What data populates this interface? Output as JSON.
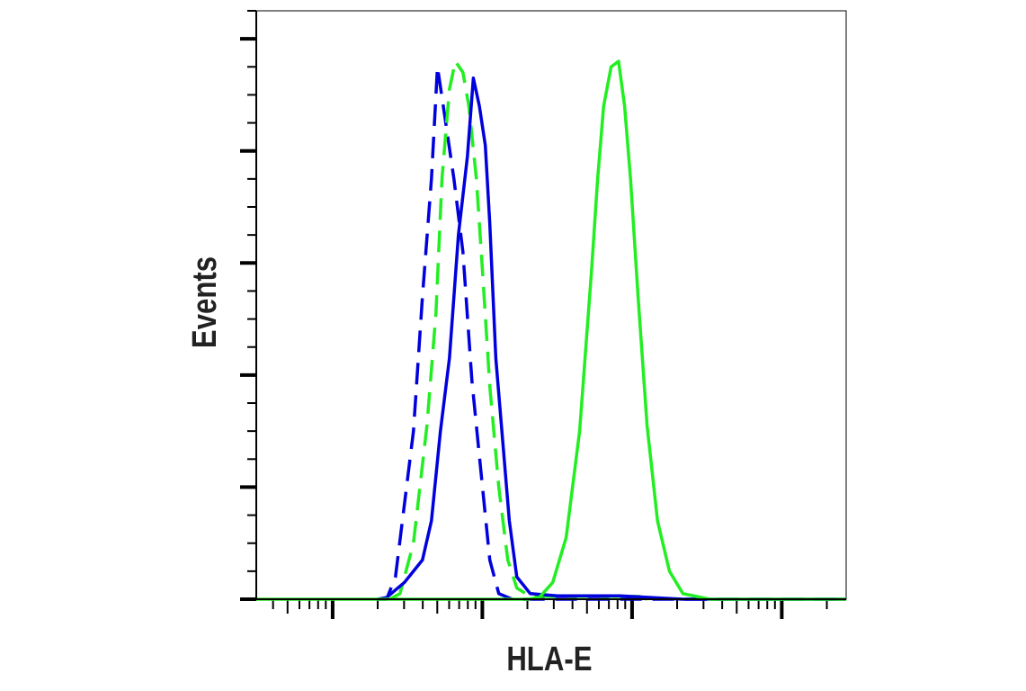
{
  "chart_data": {
    "type": "line",
    "title": "",
    "xlabel": "HLA-E",
    "ylabel": "Events",
    "x_scale": "log",
    "xlim": [
      0.49,
      4.43
    ],
    "ylim": [
      0,
      105
    ],
    "y_ticks_major": [
      0,
      20,
      40,
      60,
      80,
      100
    ],
    "y_minor_step": 5,
    "x_decades": [
      1,
      2,
      3,
      4
    ],
    "grid": false,
    "legend": "none",
    "tick_labels_shown": false,
    "series": [
      {
        "color": "#0000dd",
        "dash": true,
        "x": [
          1.3,
          1.36,
          1.42,
          1.54,
          1.6,
          1.66,
          1.7,
          1.75,
          1.81,
          1.87,
          1.93,
          1.99,
          2.05,
          2.11,
          2.2,
          4.43
        ],
        "y": [
          0,
          0,
          4,
          30,
          54,
          75,
          95,
          86,
          75,
          62,
          39,
          23,
          7,
          1,
          0,
          0
        ]
      },
      {
        "color": "#22ee22",
        "dash": true,
        "x": [
          1.38,
          1.45,
          1.54,
          1.63,
          1.69,
          1.73,
          1.78,
          1.82,
          1.87,
          1.91,
          1.96,
          2.0,
          2.05,
          2.11,
          2.17,
          2.23,
          2.32,
          2.6,
          3.05,
          3.1
        ],
        "y": [
          0,
          1,
          10,
          31,
          51,
          75,
          91,
          96,
          94,
          88,
          75,
          59,
          38,
          20,
          7,
          2,
          0.5,
          0.5,
          0.5,
          0
        ]
      },
      {
        "color": "#0000dd",
        "dash": false,
        "x": [
          1.3,
          1.36,
          1.48,
          1.6,
          1.66,
          1.72,
          1.78,
          1.84,
          1.9,
          1.94,
          1.98,
          2.02,
          2.05,
          2.09,
          2.14,
          2.18,
          2.23,
          2.32,
          2.5,
          2.92,
          3.34,
          4.43
        ],
        "y": [
          0,
          0.3,
          3,
          7,
          14,
          30,
          43,
          65,
          79,
          93,
          88,
          81,
          67,
          43,
          27,
          14,
          4,
          1,
          0.6,
          0.6,
          0,
          0
        ]
      },
      {
        "color": "#22ee22",
        "dash": false,
        "x": [
          0.49,
          2.3,
          2.38,
          2.47,
          2.56,
          2.65,
          2.73,
          2.77,
          2.81,
          2.86,
          2.91,
          2.95,
          2.99,
          3.04,
          3.1,
          3.17,
          3.25,
          3.34,
          3.52,
          4.43
        ],
        "y": [
          0,
          0,
          0.3,
          3,
          11,
          30,
          59,
          75,
          88,
          95,
          96,
          88,
          75,
          54,
          31,
          14,
          5,
          1,
          0,
          0
        ]
      }
    ]
  }
}
